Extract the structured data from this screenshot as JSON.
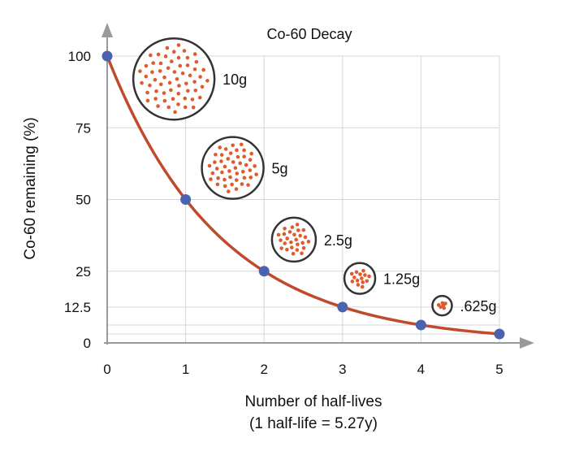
{
  "chart_data": {
    "type": "line",
    "title": "Co-60 Decay",
    "xlabel": "Number of half-lives",
    "xlabel_note": "(1 half-life = 5.27y)",
    "ylabel": "Co-60 remaining (%)",
    "x_ticks": [
      "0",
      "1",
      "2",
      "3",
      "4",
      "5"
    ],
    "y_ticks": [
      "0",
      "12.5",
      "25",
      "50",
      "75",
      "100"
    ],
    "xlim": [
      0,
      5
    ],
    "ylim": [
      0,
      100
    ],
    "grid": true,
    "series": [
      {
        "x": [
          0,
          1,
          2,
          3,
          4,
          5
        ],
        "y": [
          100,
          50,
          25,
          12.5,
          6.25,
          3.125
        ]
      }
    ],
    "annotations": [
      {
        "label": "10g",
        "x": 0.85,
        "y": 92,
        "particles": 60
      },
      {
        "label": "5g",
        "x": 1.6,
        "y": 61,
        "particles": 45
      },
      {
        "label": "2.5g",
        "x": 2.38,
        "y": 36,
        "particles": 26
      },
      {
        "label": "1.25g",
        "x": 3.22,
        "y": 22.5,
        "particles": 14
      },
      {
        "label": ".625g",
        "x": 4.27,
        "y": 13,
        "particles": 6
      }
    ],
    "colors": {
      "curve": "#bf4a2c",
      "point": "#4a62b0",
      "particle": "#e05a2c",
      "circle": "#333333"
    }
  }
}
